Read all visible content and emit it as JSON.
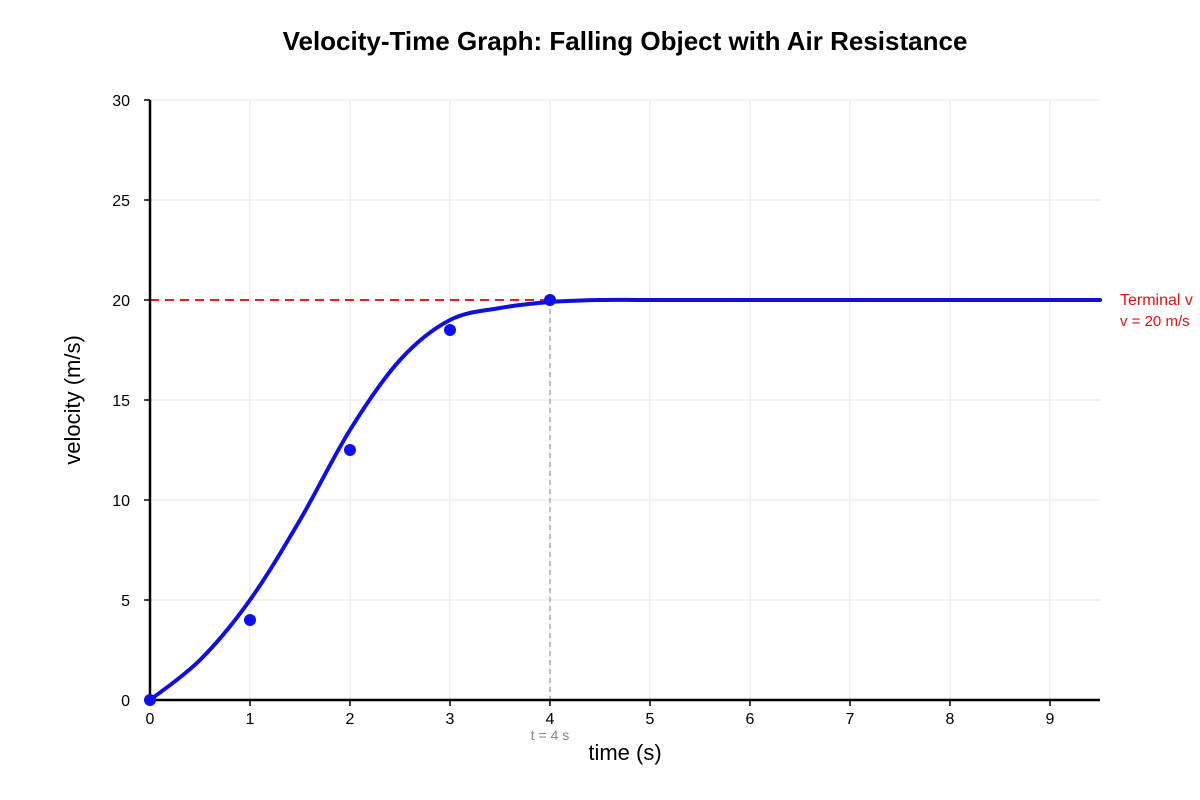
{
  "chart_data": {
    "type": "line",
    "title": "Velocity-Time Graph: Falling Object with Air Resistance",
    "xlabel": "time (s)",
    "ylabel": "velocity (m/s)",
    "xlim": [
      0,
      9.5
    ],
    "ylim": [
      0,
      30
    ],
    "x_ticks": [
      0,
      1,
      2,
      3,
      4,
      5,
      6,
      7,
      8,
      9
    ],
    "y_ticks": [
      0,
      5,
      10,
      15,
      20,
      25,
      30
    ],
    "grid": true,
    "series": [
      {
        "x": [
          0,
          0.5,
          1,
          1.5,
          2,
          2.5,
          3,
          3.5,
          4,
          4.5,
          5,
          6,
          7,
          8,
          9,
          9.5
        ],
        "values": [
          0,
          2.0,
          5.0,
          9.0,
          13.5,
          17.0,
          19.0,
          19.6,
          19.9,
          20.0,
          20.0,
          20.0,
          20.0,
          20.0,
          20.0,
          20.0
        ],
        "color": "#1010dd",
        "style": "solid-curve"
      },
      {
        "x": [
          0,
          1,
          2,
          3,
          4
        ],
        "values": [
          0,
          4,
          12.5,
          18.5,
          20
        ],
        "color": "#1010ee",
        "style": "points"
      }
    ],
    "annotations": {
      "terminal_line": {
        "y": 20,
        "x_start": 0,
        "x_end": 4,
        "color": "#dd2222"
      },
      "terminal_label": "Terminal v",
      "terminal_value_label": "v = 20 m/s",
      "time_marker": {
        "x": 4,
        "y": 20,
        "color": "#aaaaaa"
      },
      "time_marker_label": "t = 4 s"
    }
  }
}
